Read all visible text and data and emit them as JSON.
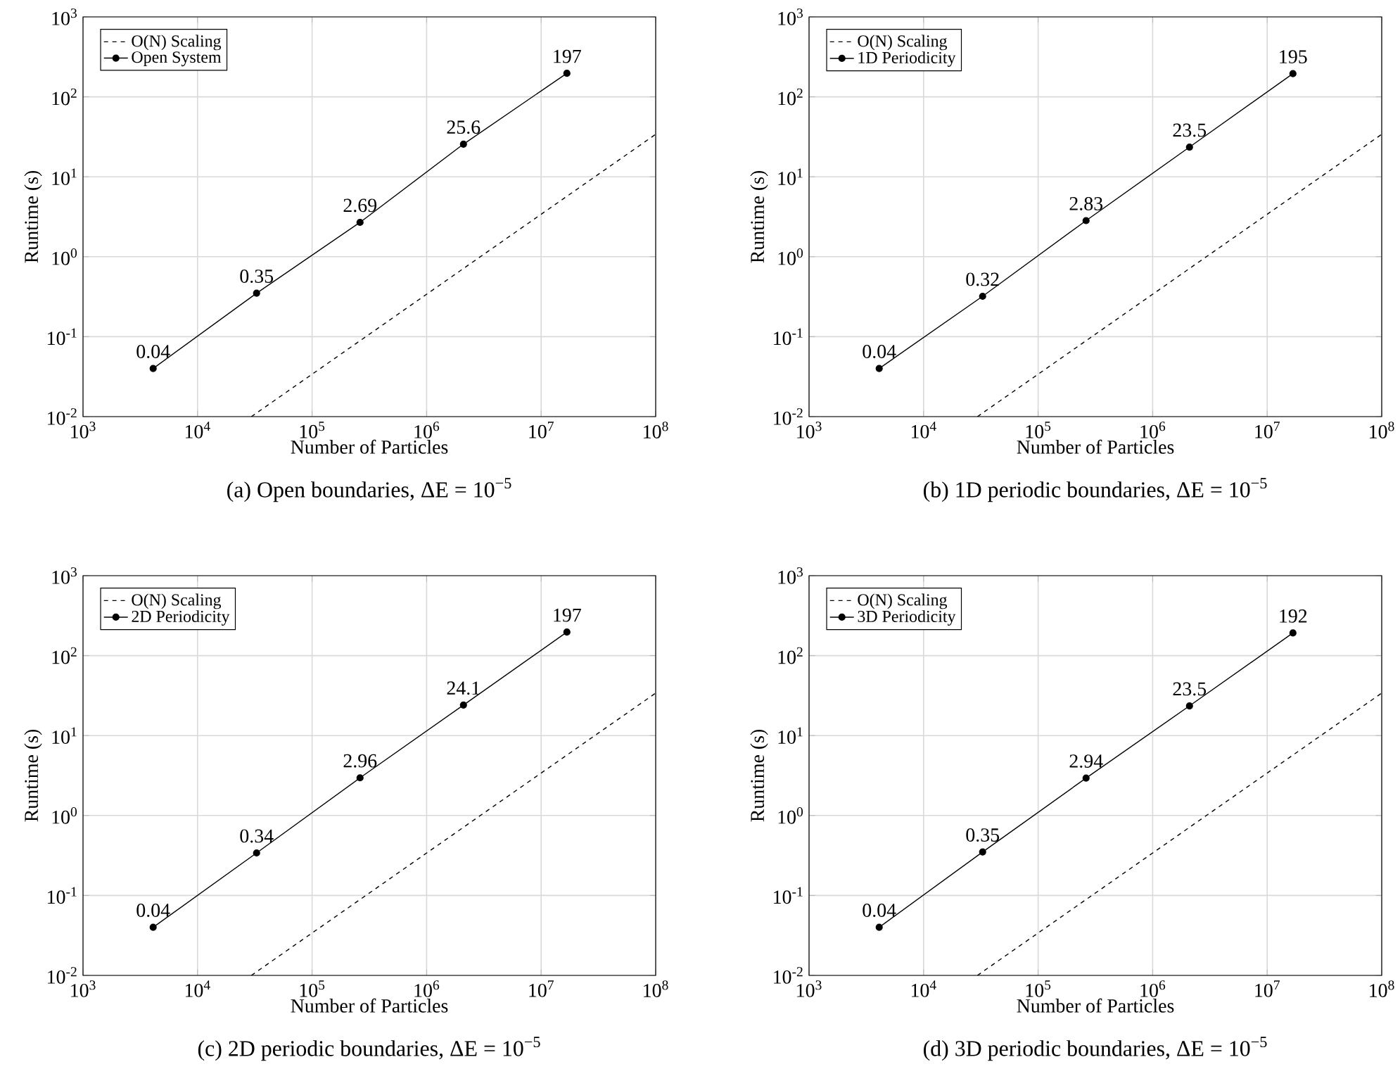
{
  "chart_data": [
    {
      "type": "line",
      "title": "(a) Open boundaries, ΔE = 10$^{−5}$",
      "xlabel": "Number of Particles",
      "ylabel": "Runtime (s)",
      "log": "xy",
      "grid": true,
      "legend": "top left",
      "xlim": [
        1000,
        100000000
      ],
      "ylim": [
        0.01,
        1000
      ],
      "xticks": [
        {
          "value": 1000,
          "label": "10$^{3}$"
        },
        {
          "value": 10000,
          "label": "10$^{4}$"
        },
        {
          "value": 100000,
          "label": "10$^{5}$"
        },
        {
          "value": 1000000,
          "label": "10$^{6}$"
        },
        {
          "value": 10000000,
          "label": "10$^{7}$"
        },
        {
          "value": 100000000,
          "label": "10$^{8}$"
        }
      ],
      "yticks": [
        {
          "value": 0.01,
          "label": "10$^{-2}$"
        },
        {
          "value": 0.1,
          "label": "10$^{-1}$"
        },
        {
          "value": 1,
          "label": "10$^{0}$"
        },
        {
          "value": 10,
          "label": "10$^{1}$"
        },
        {
          "value": 100,
          "label": "10$^{2}$"
        },
        {
          "value": 1000,
          "label": "10$^{3}$"
        }
      ],
      "series": [
        {
          "name": "O(N) Scaling",
          "color": "#000000",
          "marker": "none",
          "line_style": "dashed",
          "x": [
            29500,
            100000000
          ],
          "values": [
            0.01,
            34
          ]
        },
        {
          "name": "Open System",
          "color": "#000000",
          "marker": "circle",
          "line_style": "solid",
          "x": [
            4096,
            32768,
            262144,
            2097152,
            16777216
          ],
          "values": [
            0.04,
            0.35,
            2.69,
            25.6,
            197
          ],
          "value_labels": [
            "0.04",
            "0.35",
            "2.69",
            "25.6",
            "197"
          ]
        }
      ]
    },
    {
      "type": "line",
      "title": "(b) 1D periodic boundaries, ΔE = 10$^{−5}$",
      "xlabel": "Number of Particles",
      "ylabel": "Runtime (s)",
      "log": "xy",
      "grid": true,
      "legend": "top left",
      "xlim": [
        1000,
        100000000
      ],
      "ylim": [
        0.01,
        1000
      ],
      "xticks": [
        {
          "value": 1000,
          "label": "10$^{3}$"
        },
        {
          "value": 10000,
          "label": "10$^{4}$"
        },
        {
          "value": 100000,
          "label": "10$^{5}$"
        },
        {
          "value": 1000000,
          "label": "10$^{6}$"
        },
        {
          "value": 10000000,
          "label": "10$^{7}$"
        },
        {
          "value": 100000000,
          "label": "10$^{8}$"
        }
      ],
      "yticks": [
        {
          "value": 0.01,
          "label": "10$^{-2}$"
        },
        {
          "value": 0.1,
          "label": "10$^{-1}$"
        },
        {
          "value": 1,
          "label": "10$^{0}$"
        },
        {
          "value": 10,
          "label": "10$^{1}$"
        },
        {
          "value": 100,
          "label": "10$^{2}$"
        },
        {
          "value": 1000,
          "label": "10$^{3}$"
        }
      ],
      "series": [
        {
          "name": "O(N) Scaling",
          "color": "#000000",
          "marker": "none",
          "line_style": "dashed",
          "x": [
            29500,
            100000000
          ],
          "values": [
            0.01,
            34
          ]
        },
        {
          "name": "1D Periodicity",
          "color": "#000000",
          "marker": "circle",
          "line_style": "solid",
          "x": [
            4096,
            32768,
            262144,
            2097152,
            16777216
          ],
          "values": [
            0.04,
            0.32,
            2.83,
            23.5,
            195
          ],
          "value_labels": [
            "0.04",
            "0.32",
            "2.83",
            "23.5",
            "195"
          ]
        }
      ]
    },
    {
      "type": "line",
      "title": "(c) 2D periodic boundaries, ΔE = 10$^{−5}$",
      "xlabel": "Number of Particles",
      "ylabel": "Runtime (s)",
      "log": "xy",
      "grid": true,
      "legend": "top left",
      "xlim": [
        1000,
        100000000
      ],
      "ylim": [
        0.01,
        1000
      ],
      "xticks": [
        {
          "value": 1000,
          "label": "10$^{3}$"
        },
        {
          "value": 10000,
          "label": "10$^{4}$"
        },
        {
          "value": 100000,
          "label": "10$^{5}$"
        },
        {
          "value": 1000000,
          "label": "10$^{6}$"
        },
        {
          "value": 10000000,
          "label": "10$^{7}$"
        },
        {
          "value": 100000000,
          "label": "10$^{8}$"
        }
      ],
      "yticks": [
        {
          "value": 0.01,
          "label": "10$^{-2}$"
        },
        {
          "value": 0.1,
          "label": "10$^{-1}$"
        },
        {
          "value": 1,
          "label": "10$^{0}$"
        },
        {
          "value": 10,
          "label": "10$^{1}$"
        },
        {
          "value": 100,
          "label": "10$^{2}$"
        },
        {
          "value": 1000,
          "label": "10$^{3}$"
        }
      ],
      "series": [
        {
          "name": "O(N) Scaling",
          "color": "#000000",
          "marker": "none",
          "line_style": "dashed",
          "x": [
            29500,
            100000000
          ],
          "values": [
            0.01,
            34
          ]
        },
        {
          "name": "2D Periodicity",
          "color": "#000000",
          "marker": "circle",
          "line_style": "solid",
          "x": [
            4096,
            32768,
            262144,
            2097152,
            16777216
          ],
          "values": [
            0.04,
            0.34,
            2.96,
            24.1,
            197
          ],
          "value_labels": [
            "0.04",
            "0.34",
            "2.96",
            "24.1",
            "197"
          ]
        }
      ]
    },
    {
      "type": "line",
      "title": "(d) 3D periodic boundaries, ΔE = 10$^{−5}$",
      "xlabel": "Number of Particles",
      "ylabel": "Runtime (s)",
      "log": "xy",
      "grid": true,
      "legend": "top left",
      "xlim": [
        1000,
        100000000
      ],
      "ylim": [
        0.01,
        1000
      ],
      "xticks": [
        {
          "value": 1000,
          "label": "10$^{3}$"
        },
        {
          "value": 10000,
          "label": "10$^{4}$"
        },
        {
          "value": 100000,
          "label": "10$^{5}$"
        },
        {
          "value": 1000000,
          "label": "10$^{6}$"
        },
        {
          "value": 10000000,
          "label": "10$^{7}$"
        },
        {
          "value": 100000000,
          "label": "10$^{8}$"
        }
      ],
      "yticks": [
        {
          "value": 0.01,
          "label": "10$^{-2}$"
        },
        {
          "value": 0.1,
          "label": "10$^{-1}$"
        },
        {
          "value": 1,
          "label": "10$^{0}$"
        },
        {
          "value": 10,
          "label": "10$^{1}$"
        },
        {
          "value": 100,
          "label": "10$^{2}$"
        },
        {
          "value": 1000,
          "label": "10$^{3}$"
        }
      ],
      "series": [
        {
          "name": "O(N) Scaling",
          "color": "#000000",
          "marker": "none",
          "line_style": "dashed",
          "x": [
            29500,
            100000000
          ],
          "values": [
            0.01,
            34
          ]
        },
        {
          "name": "3D Periodicity",
          "color": "#000000",
          "marker": "circle",
          "line_style": "solid",
          "x": [
            4096,
            32768,
            262144,
            2097152,
            16777216
          ],
          "values": [
            0.04,
            0.35,
            2.94,
            23.5,
            192
          ],
          "value_labels": [
            "0.04",
            "0.35",
            "2.94",
            "23.5",
            "192"
          ]
        }
      ]
    }
  ]
}
